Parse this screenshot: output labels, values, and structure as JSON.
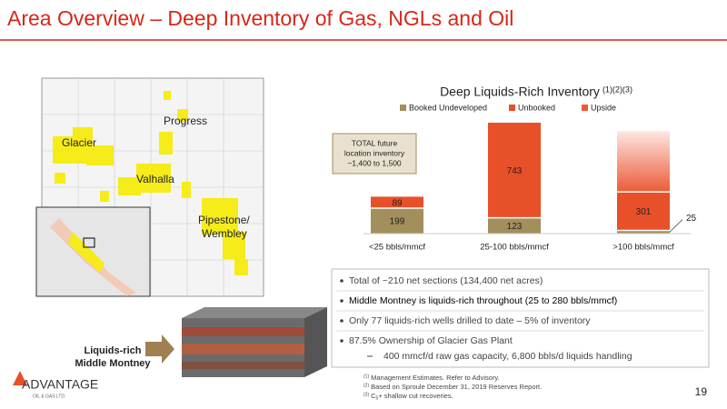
{
  "chart_data": {
    "type": "stacked_bar",
    "title": "Deep Liquids-Rich Inventory",
    "title_note": "(1)(2)(3)",
    "categories": [
      "<25 bbls/mmcf",
      "25-100 bbls/mmcf",
      ">100 bbls/mmcf"
    ],
    "series": [
      {
        "name": "Booked Undeveloped",
        "color": "#a38f5c",
        "values": [
          199,
          123,
          25
        ]
      },
      {
        "name": "Unbooked",
        "color": "#e8502a",
        "values": [
          89,
          743,
          301
        ]
      },
      {
        "name": "Upside",
        "color": "#ec5a36",
        "values": [
          null,
          null,
          470
        ],
        "gradient": true,
        "data_labels": false
      }
    ],
    "callout": [
      "TOTAL future",
      "location inventory",
      "~1,400 to 1,500"
    ]
  },
  "slide": {
    "title": "Area Overview – Deep Inventory of Gas, NGLs and Oil",
    "map_labels": [
      "Glacier",
      "Progress",
      "Valhalla",
      "Pipestone/",
      "Wembley"
    ],
    "block_label": [
      "Liquids-rich",
      "Middle Montney"
    ],
    "bullets": [
      "Total of ~210 net sections (134,400 net acres)",
      "Middle Montney is liquids-rich throughout (25 to 280 bbls/mmcf)",
      "Only 77 liquids-rich wells drilled to date – 5% of inventory",
      "87.5% Ownership of Glacier Gas Plant"
    ],
    "sub_bullet": "400 mmcf/d raw gas capacity, 6,800 bbls/d liquids handling",
    "footnotes": [
      [
        "(1)",
        "Management Estimates. Refer to Advisory."
      ],
      [
        "(2)",
        "Based on Sproule December 31, 2019 Reserves Report."
      ],
      [
        "(3)",
        "C",
        "5",
        "+ shallow cut recoveries."
      ]
    ],
    "logo": "ADVANTAGE",
    "logo_sub": "OIL & GAS LTD.",
    "page": "19"
  }
}
